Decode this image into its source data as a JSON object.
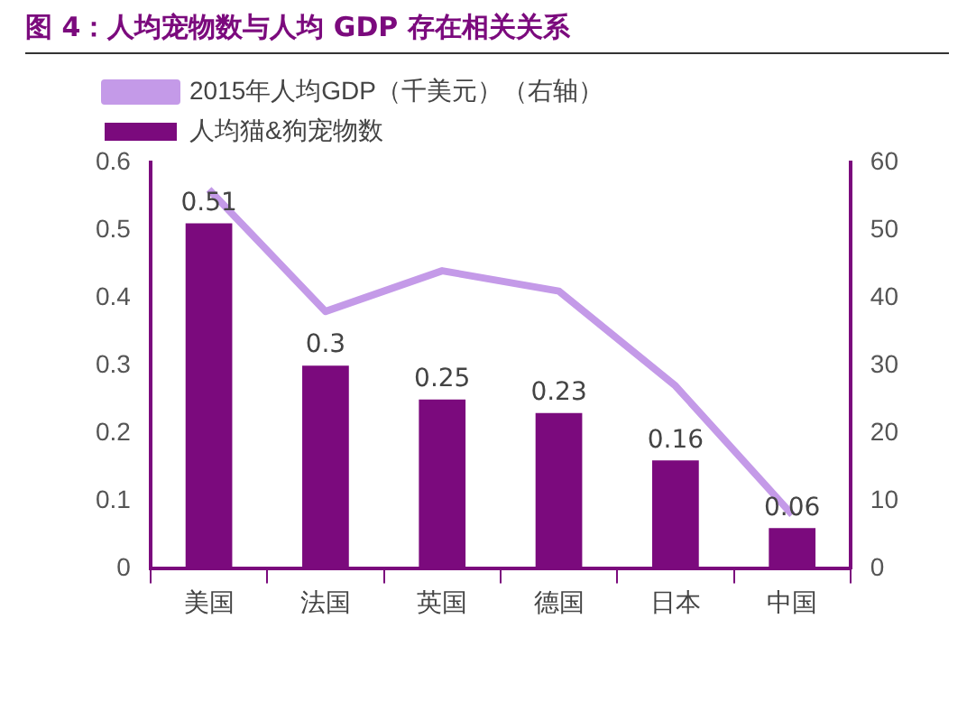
{
  "chart_data": {
    "type": "bar",
    "title": "图 4：人均宠物数与人均 GDP 存在相关关系",
    "categories": [
      "美国",
      "法国",
      "英国",
      "德国",
      "日本",
      "中国"
    ],
    "series": [
      {
        "name": "人均猫&狗宠物数",
        "color": "#7b0a7d",
        "values": [
          0.51,
          0.3,
          0.25,
          0.23,
          0.16,
          0.06
        ],
        "value_labels": [
          "0.51",
          "0.3",
          "0.25",
          "0.23",
          "0.16",
          "0.06"
        ]
      },
      {
        "name": "2015年人均GDP（千美元）（右轴）",
        "type": "line",
        "axis": "y2",
        "color": "#c49ae8",
        "values": [
          56,
          38,
          44,
          41,
          27,
          8
        ]
      }
    ],
    "ylim": [
      0,
      0.6
    ],
    "yticks": [
      0,
      0.1,
      0.2,
      0.3,
      0.4,
      0.5,
      0.6
    ],
    "y2lim": [
      0,
      60
    ],
    "y2ticks": [
      0,
      10,
      20,
      30,
      40,
      50,
      60
    ],
    "grid": false,
    "legend": "top",
    "marker": "none"
  }
}
